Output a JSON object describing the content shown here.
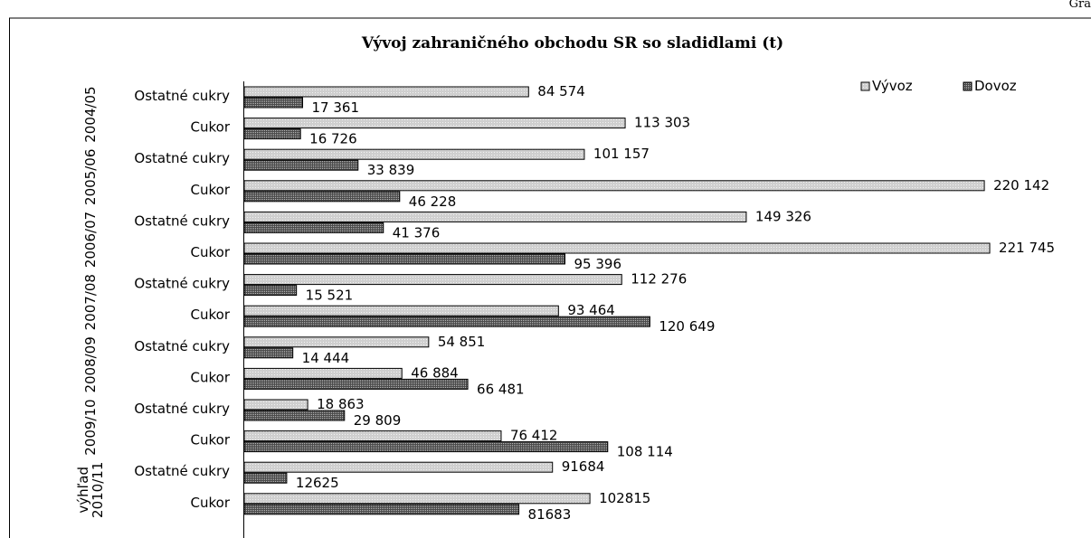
{
  "corner_label": "Gra",
  "chart_data": {
    "type": "bar",
    "orientation": "horizontal",
    "title": "Vývoj zahraničného obchodu SR so sladidlami (t)",
    "legend": [
      "Vývoz",
      "Dovoz"
    ],
    "legend_position": "top-right",
    "groups": [
      {
        "label": "2004/05",
        "items": [
          {
            "category": "Ostatné cukry",
            "vyvoz": 84574,
            "dovoz": 17361,
            "vyvoz_label": "84 574",
            "dovoz_label": "17 361"
          },
          {
            "category": "Cukor",
            "vyvoz": 113303,
            "dovoz": 16726,
            "vyvoz_label": "113 303",
            "dovoz_label": "16 726"
          }
        ]
      },
      {
        "label": "2005/06",
        "items": [
          {
            "category": "Ostatné cukry",
            "vyvoz": 101157,
            "dovoz": 33839,
            "vyvoz_label": "101 157",
            "dovoz_label": "33 839"
          },
          {
            "category": "Cukor",
            "vyvoz": 220142,
            "dovoz": 46228,
            "vyvoz_label": "220 142",
            "dovoz_label": "46 228"
          }
        ]
      },
      {
        "label": "2006/07",
        "items": [
          {
            "category": "Ostatné cukry",
            "vyvoz": 149326,
            "dovoz": 41376,
            "vyvoz_label": "149 326",
            "dovoz_label": "41 376"
          },
          {
            "category": "Cukor",
            "vyvoz": 221745,
            "dovoz": 95396,
            "vyvoz_label": "221 745",
            "dovoz_label": "95 396"
          }
        ]
      },
      {
        "label": "2007/08",
        "items": [
          {
            "category": "Ostatné cukry",
            "vyvoz": 112276,
            "dovoz": 15521,
            "vyvoz_label": "112 276",
            "dovoz_label": "15 521"
          },
          {
            "category": "Cukor",
            "vyvoz": 93464,
            "dovoz": 120649,
            "vyvoz_label": "93 464",
            "dovoz_label": "120 649"
          }
        ]
      },
      {
        "label": "2008/09",
        "items": [
          {
            "category": "Ostatné cukry",
            "vyvoz": 54851,
            "dovoz": 14444,
            "vyvoz_label": "54 851",
            "dovoz_label": "14 444"
          },
          {
            "category": "Cukor",
            "vyvoz": 46884,
            "dovoz": 66481,
            "vyvoz_label": "46 884",
            "dovoz_label": "66 481"
          }
        ]
      },
      {
        "label": "2009/10",
        "items": [
          {
            "category": "Ostatné cukry",
            "vyvoz": 18863,
            "dovoz": 29809,
            "vyvoz_label": "18 863",
            "dovoz_label": "29 809"
          },
          {
            "category": "Cukor",
            "vyvoz": 76412,
            "dovoz": 108114,
            "vyvoz_label": "76 412",
            "dovoz_label": "108 114"
          }
        ]
      },
      {
        "label": "2010/11 výhľad",
        "label_lines": [
          "výhľad",
          "2010/11"
        ],
        "items": [
          {
            "category": "Ostatné cukry",
            "vyvoz": 91684,
            "dovoz": 12625,
            "vyvoz_label": "91684",
            "dovoz_label": "12625"
          },
          {
            "category": "Cukor",
            "vyvoz": 102815,
            "dovoz": 81683,
            "vyvoz_label": "102815",
            "dovoz_label": "81683"
          }
        ]
      }
    ],
    "xlim": [
      0,
      222000
    ],
    "colors": {
      "vyvoz": "#cfcfcf",
      "dovoz": "#6e6e6e",
      "border": "#000000",
      "frame": "#000000"
    }
  }
}
